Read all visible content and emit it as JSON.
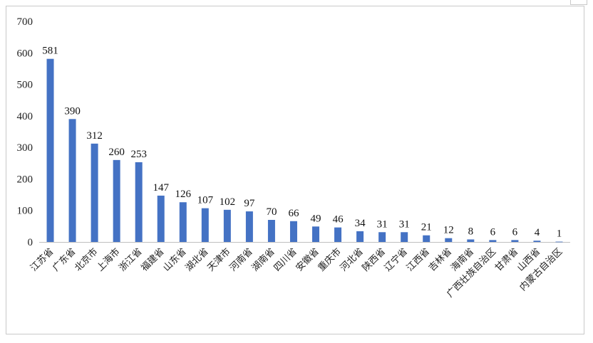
{
  "chart_data": {
    "type": "bar",
    "title": "",
    "xlabel": "",
    "ylabel": "",
    "ylim": [
      0,
      700
    ],
    "yticks": [
      0,
      100,
      200,
      300,
      400,
      500,
      600,
      700
    ],
    "grid": false,
    "legend": "none",
    "bar_color": "#4472c4",
    "categories": [
      "江苏省",
      "广东省",
      "北京市",
      "上海市",
      "浙江省",
      "福建省",
      "山东省",
      "湖北省",
      "天津市",
      "河南省",
      "湖南省",
      "四川省",
      "安徽省",
      "重庆市",
      "河北省",
      "陕西省",
      "辽宁省",
      "江西省",
      "吉林省",
      "海南省",
      "广西壮族自治区",
      "甘肃省",
      "山西省",
      "内蒙古自治区"
    ],
    "values": [
      581,
      390,
      312,
      260,
      253,
      147,
      126,
      107,
      102,
      97,
      70,
      66,
      49,
      46,
      34,
      31,
      31,
      21,
      12,
      8,
      6,
      6,
      4,
      1
    ]
  }
}
